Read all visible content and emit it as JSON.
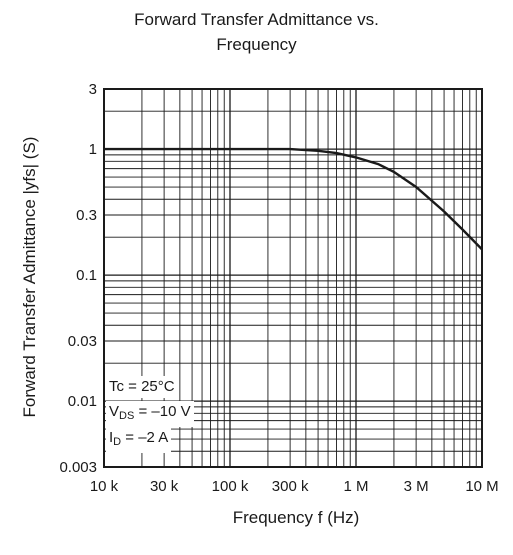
{
  "chart_data": {
    "type": "line",
    "title_line1": "Forward Transfer Admittance vs.",
    "title_line2": "Frequency",
    "xlabel": "Frequency  f  (Hz)",
    "ylabel": "Forward Transfer Admittance  |yfs|   (S)",
    "x_scale": "log",
    "y_scale": "log",
    "xlim": [
      10000,
      10000000
    ],
    "ylim": [
      0.003,
      3
    ],
    "grid": true,
    "x_ticks": [
      {
        "value": 10000,
        "label": "10 k"
      },
      {
        "value": 30000,
        "label": "30 k"
      },
      {
        "value": 100000,
        "label": "100 k"
      },
      {
        "value": 300000,
        "label": "300 k"
      },
      {
        "value": 1000000,
        "label": "1 M"
      },
      {
        "value": 3000000,
        "label": "3 M"
      },
      {
        "value": 10000000,
        "label": "10 M"
      }
    ],
    "y_ticks": [
      {
        "value": 0.003,
        "label": "0.003"
      },
      {
        "value": 0.01,
        "label": "0.01"
      },
      {
        "value": 0.03,
        "label": "0.03"
      },
      {
        "value": 0.1,
        "label": "0.1"
      },
      {
        "value": 0.3,
        "label": "0.3"
      },
      {
        "value": 1,
        "label": "1"
      },
      {
        "value": 3,
        "label": "3"
      }
    ],
    "series": [
      {
        "x": [
          10000,
          100000,
          300000,
          500000,
          700000,
          1000000,
          1500000,
          2000000,
          3000000,
          5000000,
          7000000,
          10000000
        ],
        "y": [
          1.0,
          1.0,
          1.0,
          0.97,
          0.93,
          0.86,
          0.76,
          0.66,
          0.5,
          0.32,
          0.23,
          0.16
        ]
      }
    ],
    "annotation": {
      "line1": "Tc = 25°C",
      "vds_main": "V",
      "vds_sub": "DS",
      "vds_rest": " = –10 V",
      "id_main": "I",
      "id_sub": "D",
      "id_rest": " = –2 A"
    },
    "colors": {
      "line": "#1a1a1a",
      "grid": "#1a1a1a"
    }
  }
}
